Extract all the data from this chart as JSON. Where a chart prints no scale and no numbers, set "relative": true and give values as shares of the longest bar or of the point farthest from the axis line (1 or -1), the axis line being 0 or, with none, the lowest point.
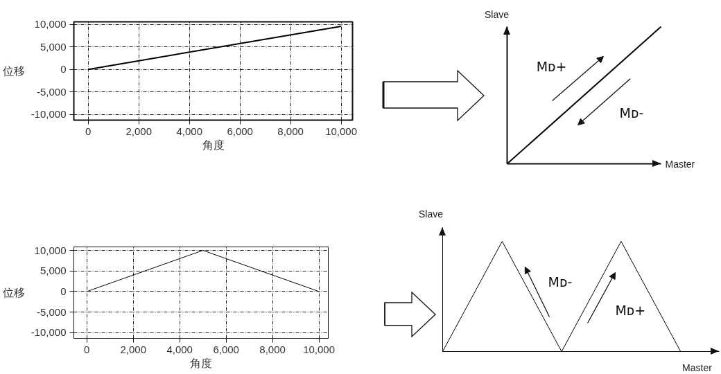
{
  "chart_data": [
    {
      "type": "line",
      "xlabel": "角度",
      "ylabel": "位移",
      "x": [
        0,
        10000
      ],
      "series": [
        {
          "color": "#000000",
          "values": [
            0,
            9600
          ]
        }
      ],
      "xlim": [
        -570,
        10450
      ],
      "ylim": [
        -11300,
        10600
      ],
      "xticks": [
        0,
        {
          "value": 2000,
          "label": "2,000"
        },
        {
          "value": 4000,
          "label": "4,000"
        },
        {
          "value": 6000,
          "label": "6,000"
        },
        {
          "value": 8000,
          "label": "8,000"
        },
        {
          "value": 10000,
          "label": "10,000"
        }
      ],
      "yticks": [
        {
          "value": -10000,
          "label": "-10,000"
        },
        {
          "value": -5000,
          "label": "-5,000"
        },
        0,
        {
          "value": 5000,
          "label": "5,000"
        },
        {
          "value": 10000,
          "label": "10,000"
        }
      ],
      "grid": true
    },
    {
      "type": "line",
      "relative": true,
      "xlabel": "Master",
      "ylabel": "Slave",
      "categories": [
        null,
        null
      ],
      "series": [
        {
          "color": "#000000",
          "values": [
            0,
            1
          ]
        }
      ],
      "annotations": [
        "Mᴅ+",
        "Mᴅ-"
      ]
    },
    {
      "type": "line",
      "xlabel": "角度",
      "ylabel": "位移",
      "x": [
        0,
        5000,
        10000
      ],
      "series": [
        {
          "color": "#000000",
          "values": [
            0,
            10000,
            0
          ]
        }
      ],
      "xlim": [
        -560,
        10400
      ],
      "ylim": [
        -11400,
        10850
      ],
      "xticks": [
        0,
        {
          "value": 2000,
          "label": "2,000"
        },
        {
          "value": 4000,
          "label": "4,000"
        },
        {
          "value": 6000,
          "label": "6,000"
        },
        {
          "value": 8000,
          "label": "8,000"
        },
        {
          "value": 10000,
          "label": "10,000"
        }
      ],
      "yticks": [
        {
          "value": -10000,
          "label": "-10,000"
        },
        {
          "value": -5000,
          "label": "-5,000"
        },
        0,
        {
          "value": 5000,
          "label": "5,000"
        },
        {
          "value": 10000,
          "label": "10,000"
        }
      ],
      "grid": true
    },
    {
      "type": "line",
      "relative": true,
      "xlabel": "Master",
      "ylabel": "Slave",
      "categories": [
        null,
        null,
        null,
        null,
        null
      ],
      "series": [
        {
          "color": "#000000",
          "values": [
            0,
            1,
            0,
            1,
            0
          ]
        }
      ],
      "annotations": [
        "Mᴅ-",
        "Mᴅ+"
      ]
    }
  ]
}
